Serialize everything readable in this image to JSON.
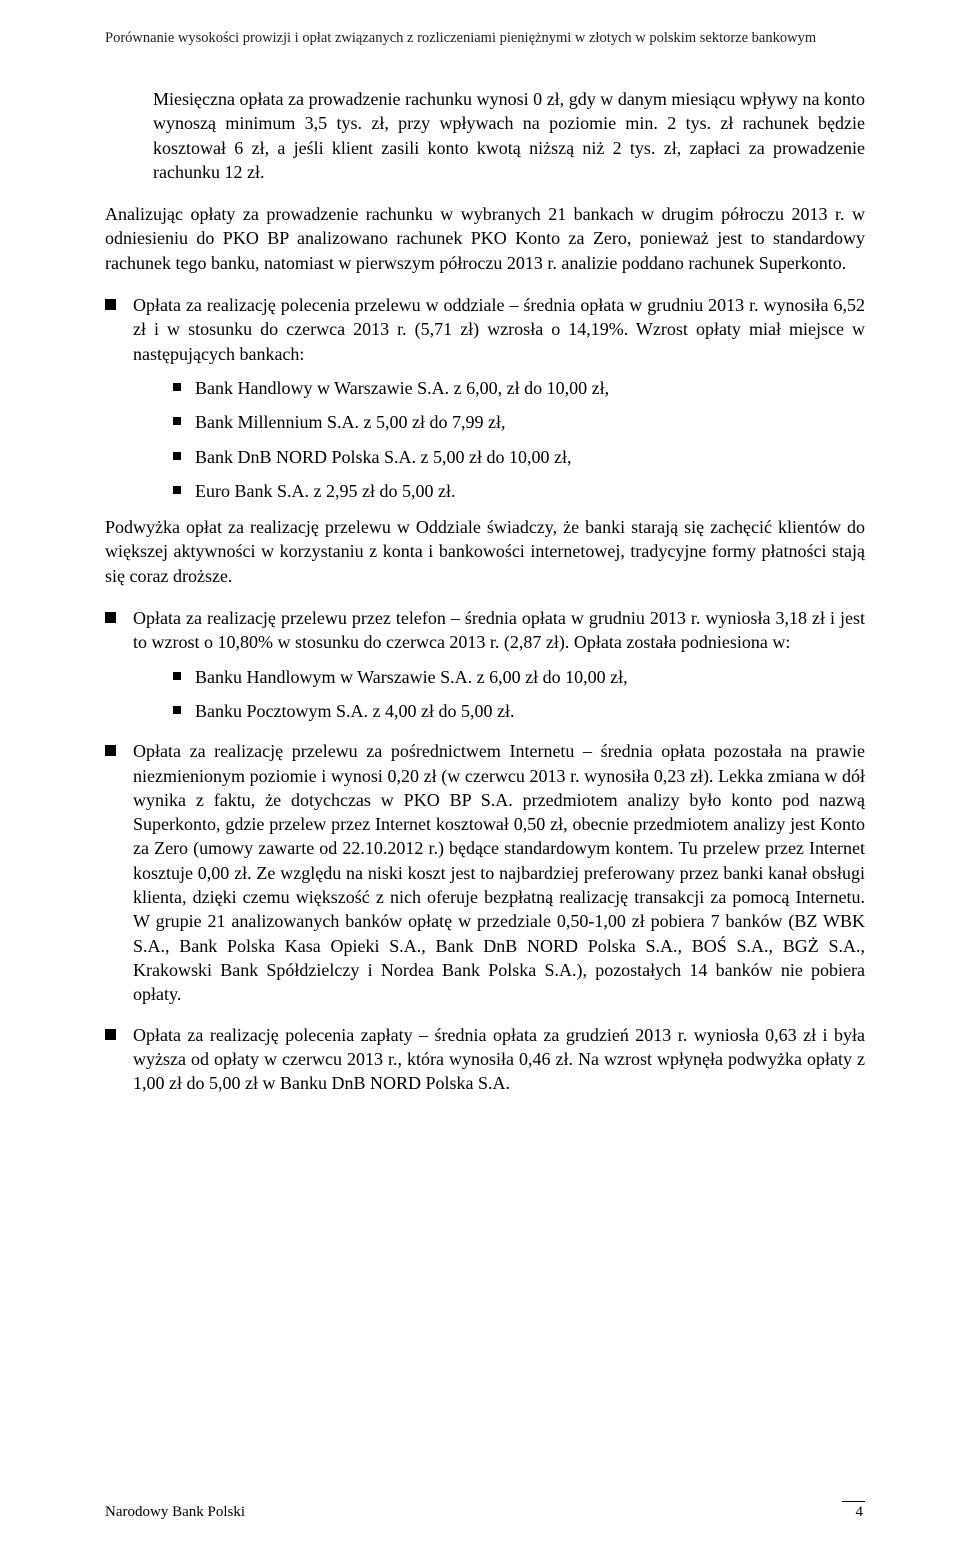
{
  "runningHead": "Porównanie wysokości prowizji i opłat związanych z rozliczeniami pieniężnymi w złotych w polskim sektorze bankowym",
  "para1": "Miesięczna opłata za prowadzenie rachunku wynosi 0 zł, gdy w danym miesiącu wpływy na konto wynoszą minimum 3,5 tys. zł, przy wpływach na poziomie min. 2 tys. zł rachunek będzie kosztował 6 zł, a jeśli klient zasili konto kwotą niższą niż 2 tys. zł, zapłaci za prowadzenie rachunku 12 zł.",
  "para2": "Analizując opłaty za prowadzenie rachunku w wybranych 21 bankach w drugim półroczu 2013 r. w odniesieniu do PKO BP analizowano rachunek PKO Konto za Zero, ponieważ jest to standardowy rachunek tego banku, natomiast w pierwszym półroczu 2013 r. analizie poddano rachunek Superkonto.",
  "bullets": {
    "b1_lead": "Opłata za realizację polecenia przelewu w oddziale – średnia opłata w grudniu 2013 r. wynosiła 6,52 zł i w stosunku do czerwca 2013 r. (5,71 zł) wzrosła o 14,19%. Wzrost opłaty miał miejsce w następujących bankach:",
    "b1_items": [
      "Bank Handlowy w Warszawie S.A. z 6,00, zł do 10,00 zł,",
      "Bank Millennium S.A. z 5,00 zł do 7,99 zł,",
      "Bank DnB NORD Polska S.A. z 5,00 zł do 10,00 zł,",
      "Euro Bank S.A. z 2,95 zł do 5,00 zł."
    ],
    "after_b1": "Podwyżka opłat za realizację przelewu w Oddziale świadczy, że banki starają się zachęcić klientów do większej aktywności w korzystaniu z konta i bankowości internetowej, tradycyjne formy płatności stają się coraz droższe.",
    "b2_lead": "Opłata za realizację przelewu przez telefon – średnia opłata w grudniu 2013 r. wyniosła 3,18 zł i jest to wzrost o 10,80% w stosunku do czerwca 2013 r. (2,87 zł). Opłata została podniesiona w:",
    "b2_items": [
      "Banku Handlowym w Warszawie S.A. z 6,00 zł do 10,00 zł,",
      "Banku Pocztowym S.A. z 4,00 zł do 5,00 zł."
    ],
    "b3": "Opłata za realizację przelewu za pośrednictwem Internetu – średnia opłata pozostała na prawie niezmienionym poziomie i wynosi 0,20 zł (w czerwcu 2013 r. wynosiła 0,23 zł). Lekka zmiana w dół wynika z faktu, że dotychczas w PKO BP S.A. przedmiotem analizy było konto pod nazwą Superkonto, gdzie przelew przez Internet kosztował 0,50 zł, obecnie przedmiotem analizy jest Konto za Zero (umowy zawarte od 22.10.2012 r.) będące standardowym kontem. Tu przelew przez Internet kosztuje 0,00 zł.  Ze względu na niski koszt jest to najbardziej preferowany przez banki kanał obsługi klienta, dzięki czemu większość z nich oferuje bezpłatną realizację transakcji za pomocą Internetu. W grupie 21 analizowanych banków opłatę w przedziale 0,50-1,00 zł pobiera 7 banków (BZ WBK S.A., Bank Polska Kasa Opieki S.A., Bank DnB NORD Polska S.A., BOŚ S.A., BGŻ S.A., Krakowski Bank Spółdzielczy i Nordea Bank Polska S.A.), pozostałych 14 banków nie pobiera opłaty.",
    "b4": "Opłata za realizację polecenia zapłaty – średnia opłata za grudzień 2013 r. wyniosła 0,63 zł i była wyższa od opłaty w czerwcu 2013 r., która wynosiła 0,46 zł. Na wzrost wpłynęła podwyżka opłaty z 1,00 zł do 5,00 zł w Banku DnB NORD Polska S.A."
  },
  "footer": {
    "bank": "Narodowy Bank Polski",
    "page": "4"
  }
}
